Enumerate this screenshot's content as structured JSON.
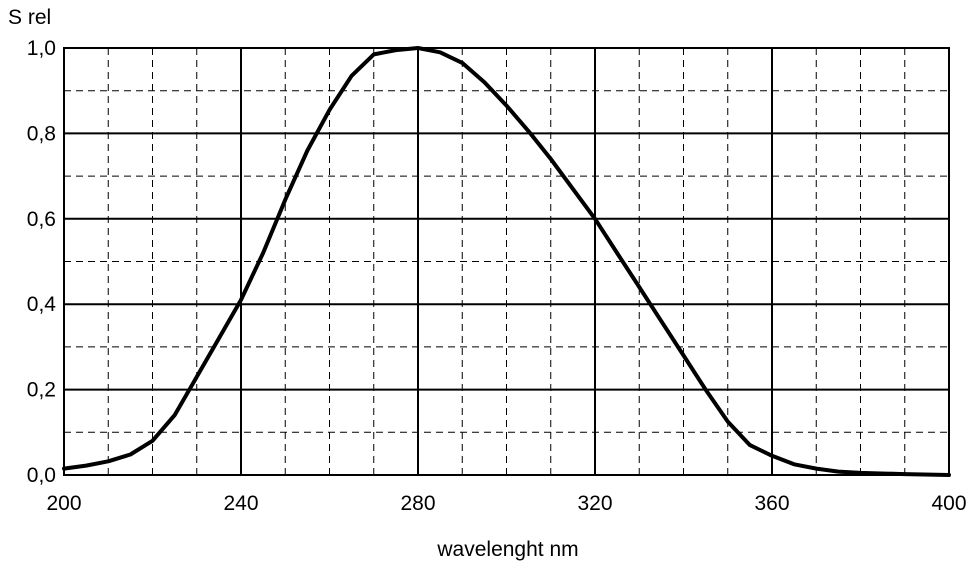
{
  "chart_data": {
    "type": "line",
    "title": "",
    "xlabel": "wavelenght nm",
    "ylabel": "S rel",
    "xlim": [
      200,
      400
    ],
    "ylim": [
      0.0,
      1.0
    ],
    "x_ticks": [
      200,
      240,
      280,
      320,
      360,
      400
    ],
    "x_tick_labels": [
      "200",
      "240",
      "280",
      "320",
      "360",
      "400"
    ],
    "y_ticks": [
      0.0,
      0.2,
      0.4,
      0.6,
      0.8,
      1.0
    ],
    "y_tick_labels": [
      "0,0",
      "0,2",
      "0,4",
      "0,6",
      "0,8",
      "1,0"
    ],
    "x_minor_step": 10,
    "y_minor_step": 0.1,
    "grid": true,
    "legend": "none",
    "line_color": "#000000",
    "series": [
      {
        "x": [
          200,
          205,
          210,
          215,
          220,
          225,
          230,
          235,
          240,
          245,
          250,
          255,
          260,
          265,
          270,
          275,
          280,
          285,
          290,
          295,
          300,
          305,
          310,
          315,
          320,
          325,
          330,
          335,
          340,
          345,
          350,
          355,
          360,
          365,
          370,
          375,
          380,
          390,
          400
        ],
        "y": [
          0.015,
          0.022,
          0.032,
          0.048,
          0.08,
          0.14,
          0.23,
          0.32,
          0.41,
          0.52,
          0.645,
          0.76,
          0.855,
          0.935,
          0.985,
          0.995,
          1.0,
          0.99,
          0.965,
          0.92,
          0.865,
          0.805,
          0.74,
          0.67,
          0.6,
          0.52,
          0.44,
          0.36,
          0.28,
          0.2,
          0.125,
          0.07,
          0.045,
          0.025,
          0.015,
          0.008,
          0.005,
          0.002,
          0.0
        ]
      }
    ]
  }
}
